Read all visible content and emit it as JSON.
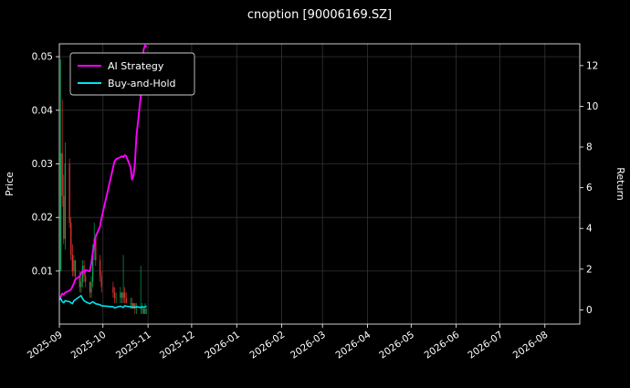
{
  "chart_data": {
    "type": "candlestick+line",
    "title": "cnoption [90006169.SZ]",
    "ylabel_left": "Price",
    "ylabel_right": "Return",
    "legend_position": "upper left",
    "grid": true,
    "x_start": "2025-09-01",
    "x_span_days": 358,
    "x_ticks": [
      {
        "label": "2025-09",
        "date": "2025-09-01"
      },
      {
        "label": "2025-10",
        "date": "2025-10-01"
      },
      {
        "label": "2025-11",
        "date": "2025-11-01"
      },
      {
        "label": "2025-12",
        "date": "2025-12-01"
      },
      {
        "label": "2026-01",
        "date": "2026-01-01"
      },
      {
        "label": "2026-02",
        "date": "2026-02-01"
      },
      {
        "label": "2026-03",
        "date": "2026-03-01"
      },
      {
        "label": "2026-04",
        "date": "2026-04-01"
      },
      {
        "label": "2026-05",
        "date": "2026-05-01"
      },
      {
        "label": "2026-06",
        "date": "2026-06-01"
      },
      {
        "label": "2026-07",
        "date": "2026-07-01"
      },
      {
        "label": "2026-08",
        "date": "2026-08-01"
      }
    ],
    "price_ticks": [
      {
        "label": "0.01",
        "value": 0.01
      },
      {
        "label": "0.02",
        "value": 0.02
      },
      {
        "label": "0.03",
        "value": 0.03
      },
      {
        "label": "0.04",
        "value": 0.04
      },
      {
        "label": "0.05",
        "value": 0.05
      }
    ],
    "return_ticks": [
      {
        "label": "0",
        "value": 0
      },
      {
        "label": "2",
        "value": 2
      },
      {
        "label": "4",
        "value": 4
      },
      {
        "label": "6",
        "value": 6
      },
      {
        "label": "8",
        "value": 8
      },
      {
        "label": "10",
        "value": 10
      },
      {
        "label": "12",
        "value": 12
      }
    ],
    "price_range": [
      0.0001,
      0.0524
    ],
    "return_range": [
      -0.7,
      13.07
    ],
    "candle_format": [
      "open",
      "high",
      "low",
      "close"
    ],
    "dates": [
      "2025-09-01",
      "2025-09-02",
      "2025-09-03",
      "2025-09-04",
      "2025-09-05",
      "2025-09-08",
      "2025-09-09",
      "2025-09-10",
      "2025-09-11",
      "2025-09-12",
      "2025-09-15",
      "2025-09-16",
      "2025-09-17",
      "2025-09-18",
      "2025-09-19",
      "2025-09-22",
      "2025-09-23",
      "2025-09-24",
      "2025-09-25",
      "2025-09-26",
      "2025-09-29",
      "2025-09-30",
      "2025-10-08",
      "2025-10-09",
      "2025-10-10",
      "2025-10-13",
      "2025-10-14",
      "2025-10-15",
      "2025-10-16",
      "2025-10-17",
      "2025-10-20",
      "2025-10-21",
      "2025-10-22",
      "2025-10-23",
      "2025-10-24",
      "2025-10-27",
      "2025-10-28",
      "2025-10-29",
      "2025-10-30",
      "2025-10-31"
    ],
    "ohlc": [
      [
        0.009,
        0.011,
        0.008,
        0.01
      ],
      [
        0.01,
        0.0495,
        0.01,
        0.032
      ],
      [
        0.032,
        0.042,
        0.022,
        0.024
      ],
      [
        0.024,
        0.028,
        0.015,
        0.016
      ],
      [
        0.016,
        0.034,
        0.014,
        0.03
      ],
      [
        0.03,
        0.031,
        0.018,
        0.019
      ],
      [
        0.019,
        0.02,
        0.012,
        0.013
      ],
      [
        0.013,
        0.015,
        0.009,
        0.01
      ],
      [
        0.01,
        0.013,
        0.009,
        0.012
      ],
      [
        0.012,
        0.012,
        0.008,
        0.009
      ],
      [
        0.009,
        0.01,
        0.006,
        0.007
      ],
      [
        0.007,
        0.009,
        0.006,
        0.008
      ],
      [
        0.008,
        0.012,
        0.007,
        0.011
      ],
      [
        0.011,
        0.012,
        0.008,
        0.009
      ],
      [
        0.009,
        0.01,
        0.007,
        0.008
      ],
      [
        0.008,
        0.008,
        0.005,
        0.006
      ],
      [
        0.006,
        0.009,
        0.005,
        0.008
      ],
      [
        0.008,
        0.015,
        0.007,
        0.014
      ],
      [
        0.014,
        0.019,
        0.012,
        0.016
      ],
      [
        0.016,
        0.017,
        0.011,
        0.012
      ],
      [
        0.012,
        0.013,
        0.008,
        0.009
      ],
      [
        0.009,
        0.01,
        0.006,
        0.007
      ],
      [
        0.007,
        0.008,
        0.005,
        0.006
      ],
      [
        0.006,
        0.007,
        0.004,
        0.005
      ],
      [
        0.005,
        0.006,
        0.004,
        0.005
      ],
      [
        0.005,
        0.007,
        0.004,
        0.006
      ],
      [
        0.006,
        0.006,
        0.004,
        0.005
      ],
      [
        0.005,
        0.013,
        0.004,
        0.006
      ],
      [
        0.006,
        0.007,
        0.004,
        0.005
      ],
      [
        0.005,
        0.006,
        0.004,
        0.004
      ],
      [
        0.004,
        0.005,
        0.003,
        0.004
      ],
      [
        0.004,
        0.005,
        0.003,
        0.003
      ],
      [
        0.003,
        0.004,
        0.003,
        0.004
      ],
      [
        0.004,
        0.004,
        0.002,
        0.003
      ],
      [
        0.003,
        0.004,
        0.002,
        0.003
      ],
      [
        0.003,
        0.011,
        0.002,
        0.003
      ],
      [
        0.003,
        0.004,
        0.002,
        0.003
      ],
      [
        0.003,
        0.003,
        0.002,
        0.002
      ],
      [
        0.002,
        0.004,
        0.002,
        0.003
      ],
      [
        0.003,
        0.003,
        0.002,
        0.003
      ]
    ],
    "series": [
      {
        "name": "AI Strategy",
        "color": "#ff00ff",
        "axis": "return",
        "values": [
          0.55,
          0.65,
          0.8,
          0.75,
          0.85,
          0.95,
          1.0,
          1.15,
          1.3,
          1.5,
          1.65,
          1.8,
          1.9,
          1.85,
          1.95,
          1.9,
          2.3,
          2.8,
          3.2,
          3.6,
          4.1,
          4.5,
          7.0,
          7.3,
          7.4,
          7.5,
          7.55,
          7.5,
          7.6,
          7.55,
          7.0,
          6.4,
          6.6,
          7.2,
          8.5,
          10.5,
          12.0,
          12.8,
          13.0,
          12.9
        ]
      },
      {
        "name": "Buy-and-Hold",
        "color": "#00e5ee",
        "axis": "return",
        "values": [
          0.5,
          0.55,
          0.4,
          0.35,
          0.45,
          0.4,
          0.35,
          0.3,
          0.45,
          0.5,
          0.65,
          0.7,
          0.55,
          0.45,
          0.4,
          0.3,
          0.35,
          0.4,
          0.35,
          0.3,
          0.25,
          0.2,
          0.15,
          0.1,
          0.12,
          0.18,
          0.15,
          0.12,
          0.2,
          0.18,
          0.15,
          0.12,
          0.15,
          0.12,
          0.15,
          0.12,
          0.15,
          0.12,
          0.15,
          0.18
        ]
      }
    ],
    "colors": {
      "background": "#000000",
      "foreground": "#ffffff",
      "grid": "#333333",
      "up": "#00a650",
      "down": "#e13232",
      "legend_border": "#cccccc"
    }
  }
}
